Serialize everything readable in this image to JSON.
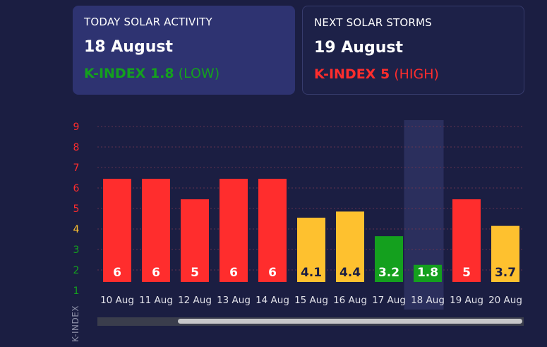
{
  "cards": {
    "today": {
      "label": "TODAY SOLAR ACTIVITY",
      "date": "18 August",
      "kindex_text": "K-INDEX 1.8",
      "level_text": "(LOW)"
    },
    "next": {
      "label": "NEXT SOLAR STORMS",
      "date": "19 August",
      "kindex_text": "K-INDEX 5",
      "level_text": "(HIGH)"
    }
  },
  "colors": {
    "high": "#ff2d2d",
    "medium": "#fec12f",
    "low": "#14a01e",
    "background": "#1b1e42",
    "highlight": "#2d3160"
  },
  "chart_data": {
    "type": "bar",
    "categories": [
      "10 Aug",
      "11 Aug",
      "12 Aug",
      "13 Aug",
      "14 Aug",
      "15 Aug",
      "16 Aug",
      "17 Aug",
      "18 Aug",
      "19 Aug",
      "20 Aug"
    ],
    "values": [
      6,
      6,
      5,
      6,
      6,
      4.1,
      4.4,
      3.2,
      1.8,
      5,
      3.7
    ],
    "data_labels": [
      "6",
      "6",
      "5",
      "6",
      "6",
      "4.1",
      "4.4",
      "3.2",
      "1.8",
      "5",
      "3.7"
    ],
    "bar_levels": [
      "high",
      "high",
      "high",
      "high",
      "high",
      "medium",
      "medium",
      "low",
      "low",
      "high",
      "medium"
    ],
    "highlighted_category": "18 Aug",
    "ylabel": "K-INDEX",
    "yticks": [
      1,
      2,
      3,
      4,
      5,
      6,
      7,
      8,
      9
    ],
    "ytick_levels": [
      "low",
      "low",
      "low",
      "medium",
      "high",
      "high",
      "high",
      "high",
      "high"
    ],
    "ylim": [
      1,
      9
    ],
    "grid": true
  }
}
